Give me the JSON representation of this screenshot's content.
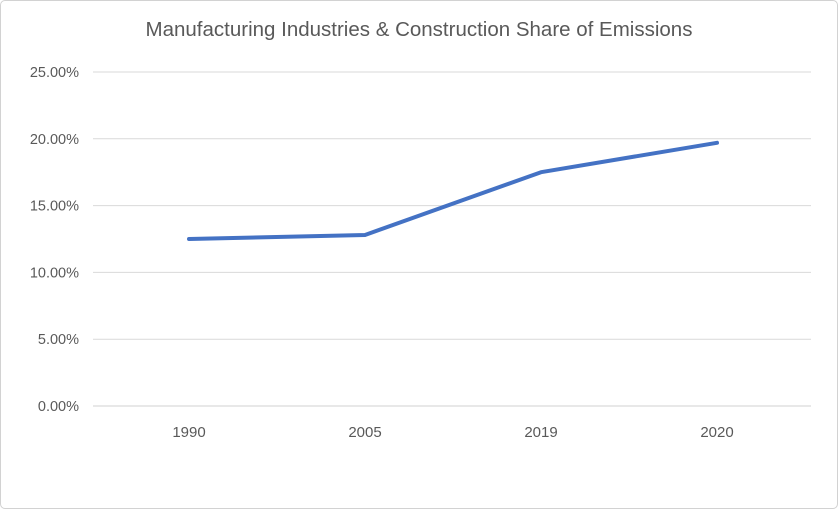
{
  "chart_data": {
    "type": "line",
    "title": "Manufacturing Industries & Construction Share of Emissions",
    "categories": [
      "1990",
      "2005",
      "2019",
      "2020"
    ],
    "series": [
      {
        "name": "Manufacturing Industries & Construction Share of Emissions",
        "values": [
          12.5,
          12.8,
          17.5,
          19.7
        ]
      }
    ],
    "xlabel": "",
    "ylabel": "",
    "ylim": [
      0,
      25
    ],
    "y_tick_step": 5,
    "y_tick_labels": [
      "0.00%",
      "5.00%",
      "10.00%",
      "15.00%",
      "20.00%",
      "25.00%"
    ],
    "grid": true,
    "legend_position": "none",
    "colors": {
      "line": "#4472C4",
      "gridline": "#d9d9d9",
      "axis_line": "#d0d0d0",
      "axis_text": "#595959",
      "title_text": "#595959"
    }
  }
}
